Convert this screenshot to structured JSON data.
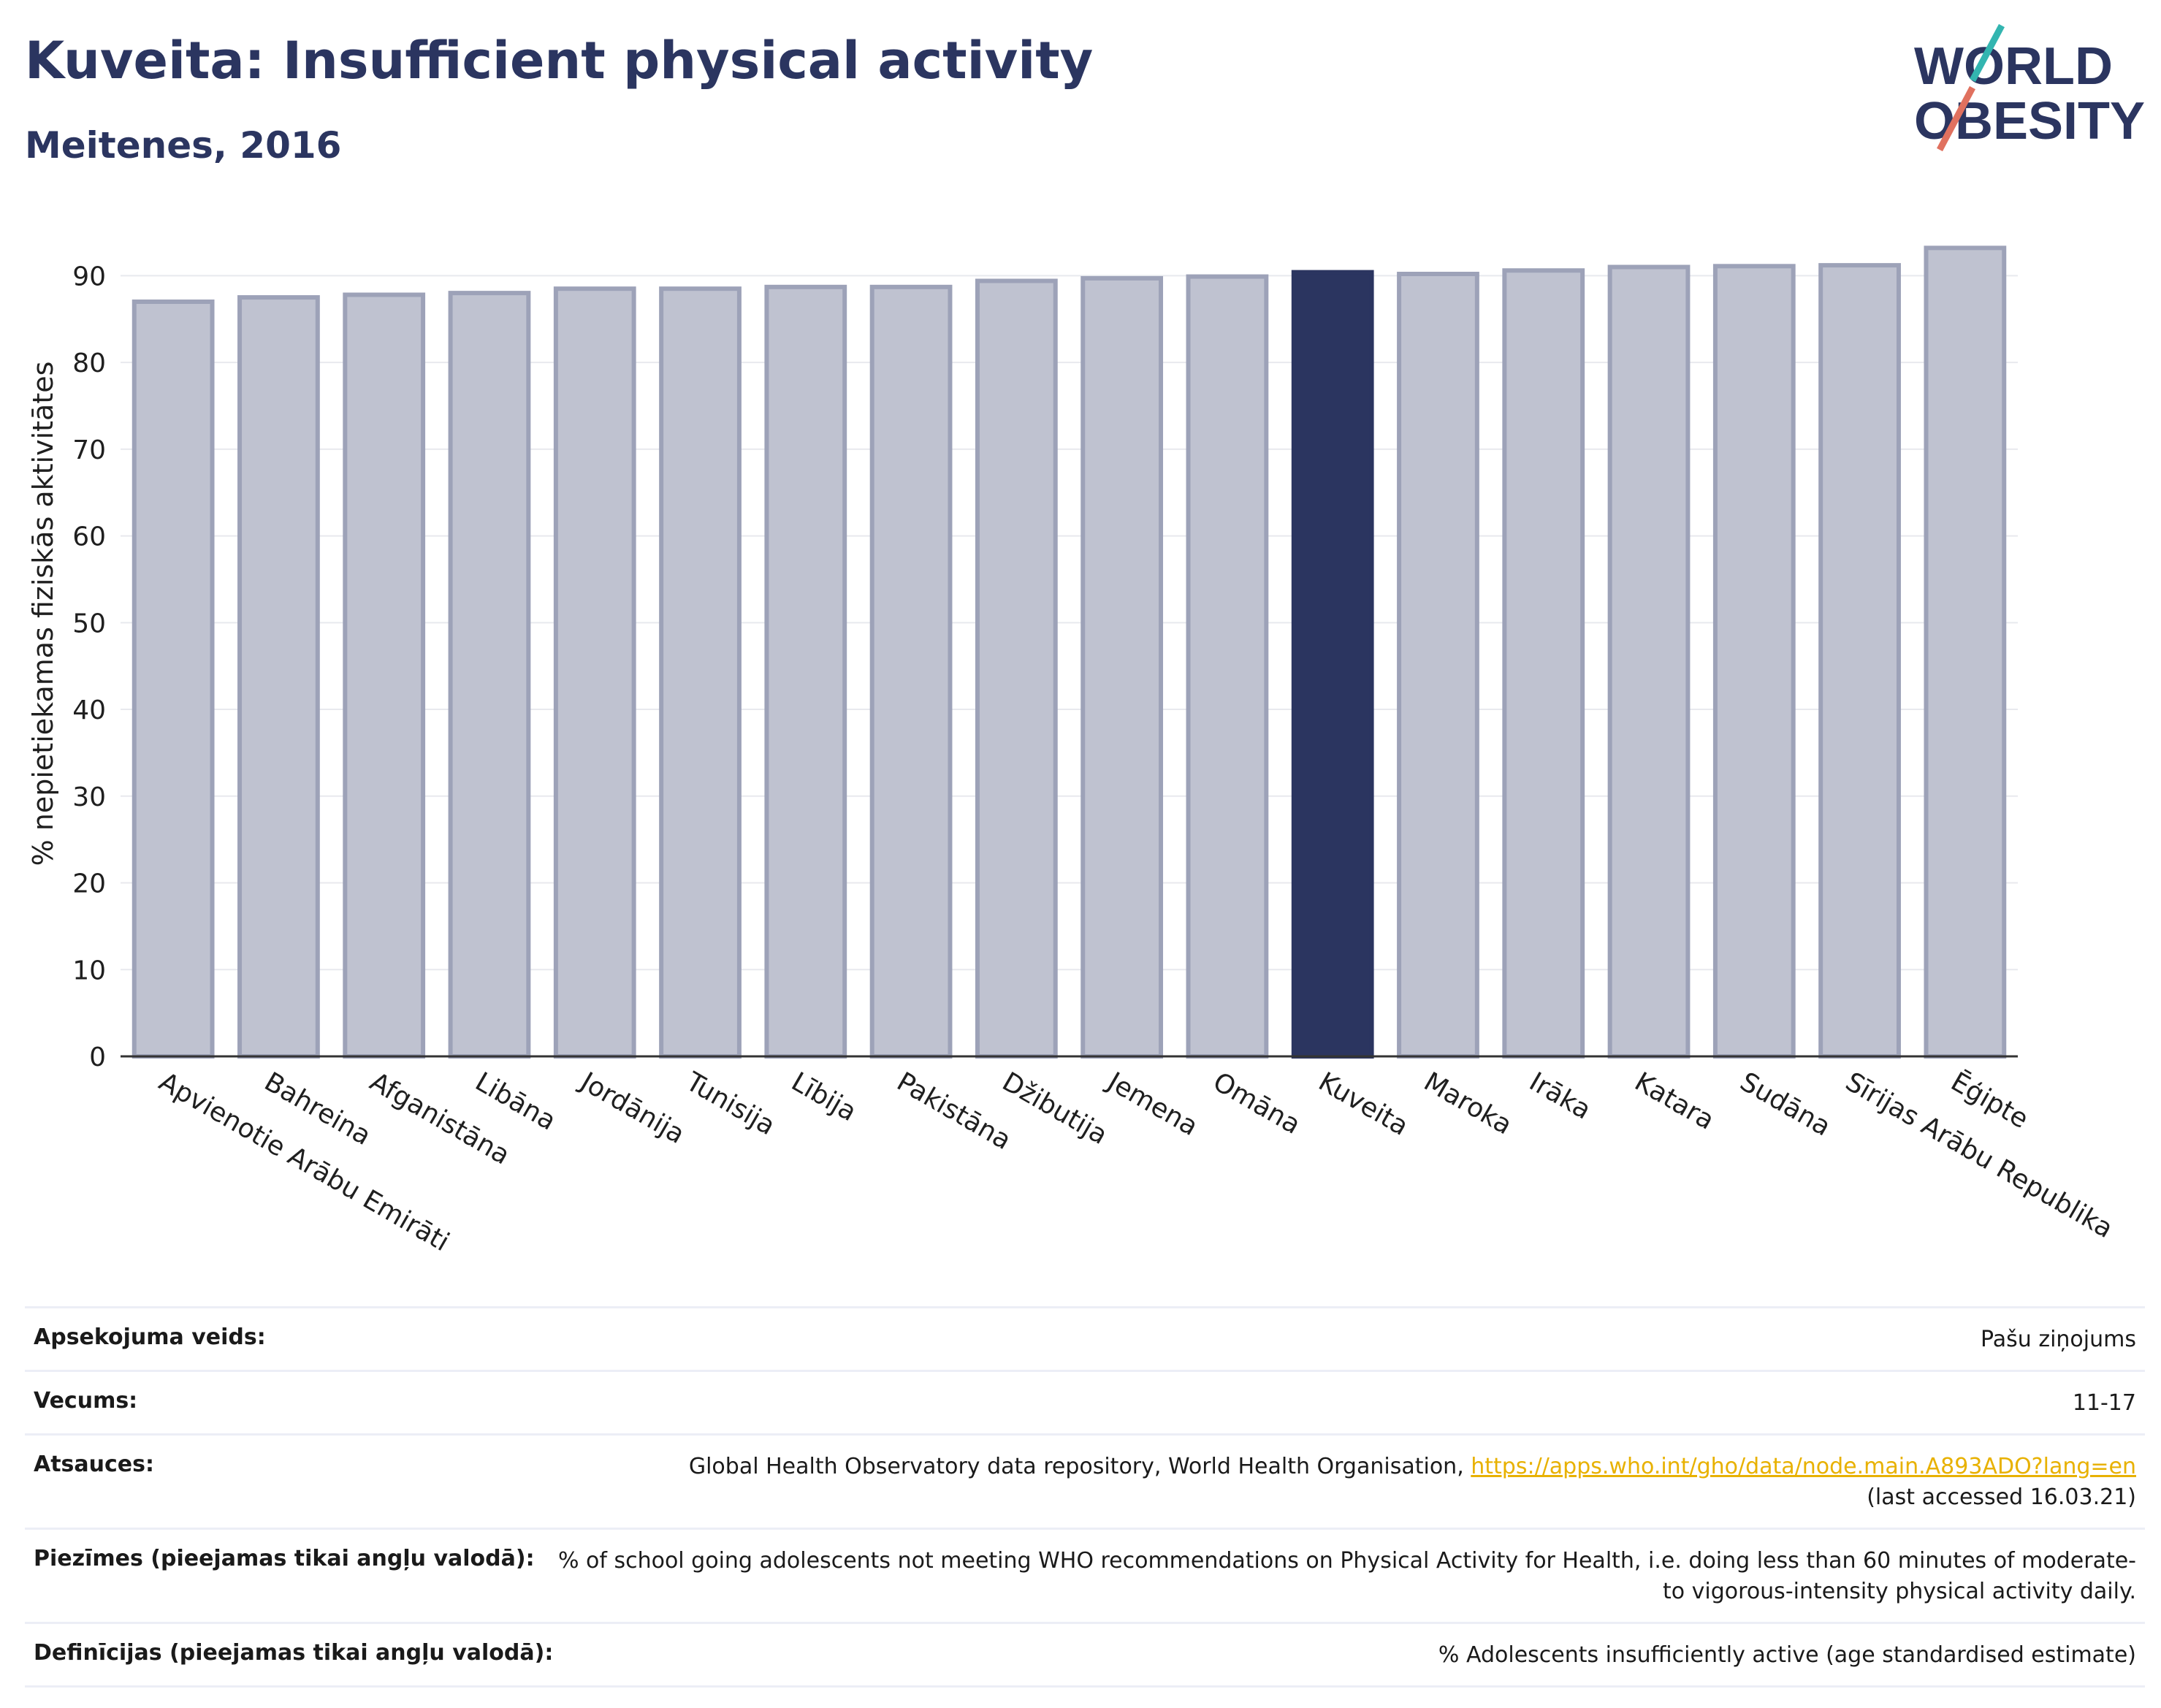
{
  "header": {
    "title": "Kuveita: Insufficient physical activity",
    "subtitle": "Meitenes, 2016"
  },
  "logo": {
    "line1": "WORLD",
    "line2": "OBESITY"
  },
  "colors": {
    "bar": "#bfc2d0",
    "bar_border": "#9da2b8",
    "highlight": "#2b3560",
    "title": "#2b3560",
    "link": "#e8b100"
  },
  "chart_data": {
    "type": "bar",
    "ylabel": "% nepietiekamas fiziskās aktivitātes",
    "ylim": [
      0,
      95
    ],
    "yticks": [
      0,
      10,
      20,
      30,
      40,
      50,
      60,
      70,
      80,
      90
    ],
    "grid": true,
    "highlight": "Kuveita",
    "categories": [
      "Apvienotie Arābu Emirāti",
      "Bahreina",
      "Afganistāna",
      "Libāna",
      "Jordānija",
      "Tunisija",
      "Lībija",
      "Pakistāna",
      "Džibutija",
      "Jemena",
      "Omāna",
      "Kuveita",
      "Maroka",
      "Irāka",
      "Katara",
      "Sudāna",
      "Sīrijas Arābu Republika",
      "Ēģipte"
    ],
    "values": [
      87.0,
      87.5,
      87.8,
      88.0,
      88.5,
      88.5,
      88.7,
      88.7,
      89.4,
      89.7,
      89.9,
      90.4,
      90.2,
      90.6,
      91.0,
      91.1,
      91.2,
      93.2
    ]
  },
  "info": {
    "rows": [
      {
        "label": "Apsekojuma veids:",
        "value": "Pašu ziņojums"
      },
      {
        "label": "Vecums:",
        "value": "11-17"
      },
      {
        "label": "Atsauces:",
        "value_prefix": "Global Health Observatory data repository, World Health Organisation, ",
        "link": "https://apps.who.int/gho/data/node.main.A893ADO?lang=en",
        "value_suffix": "(last accessed 16.03.21)"
      },
      {
        "label": "Piezīmes (pieejamas tikai angļu valodā):",
        "value": "% of school going adolescents not meeting WHO recommendations on Physical Activity for Health, i.e. doing less than 60 minutes of moderate- to vigorous-intensity physical activity daily."
      },
      {
        "label": "Definīcijas (pieejamas tikai angļu valodā):",
        "value": "% Adolescents insufficiently active (age standardised estimate)"
      }
    ]
  }
}
